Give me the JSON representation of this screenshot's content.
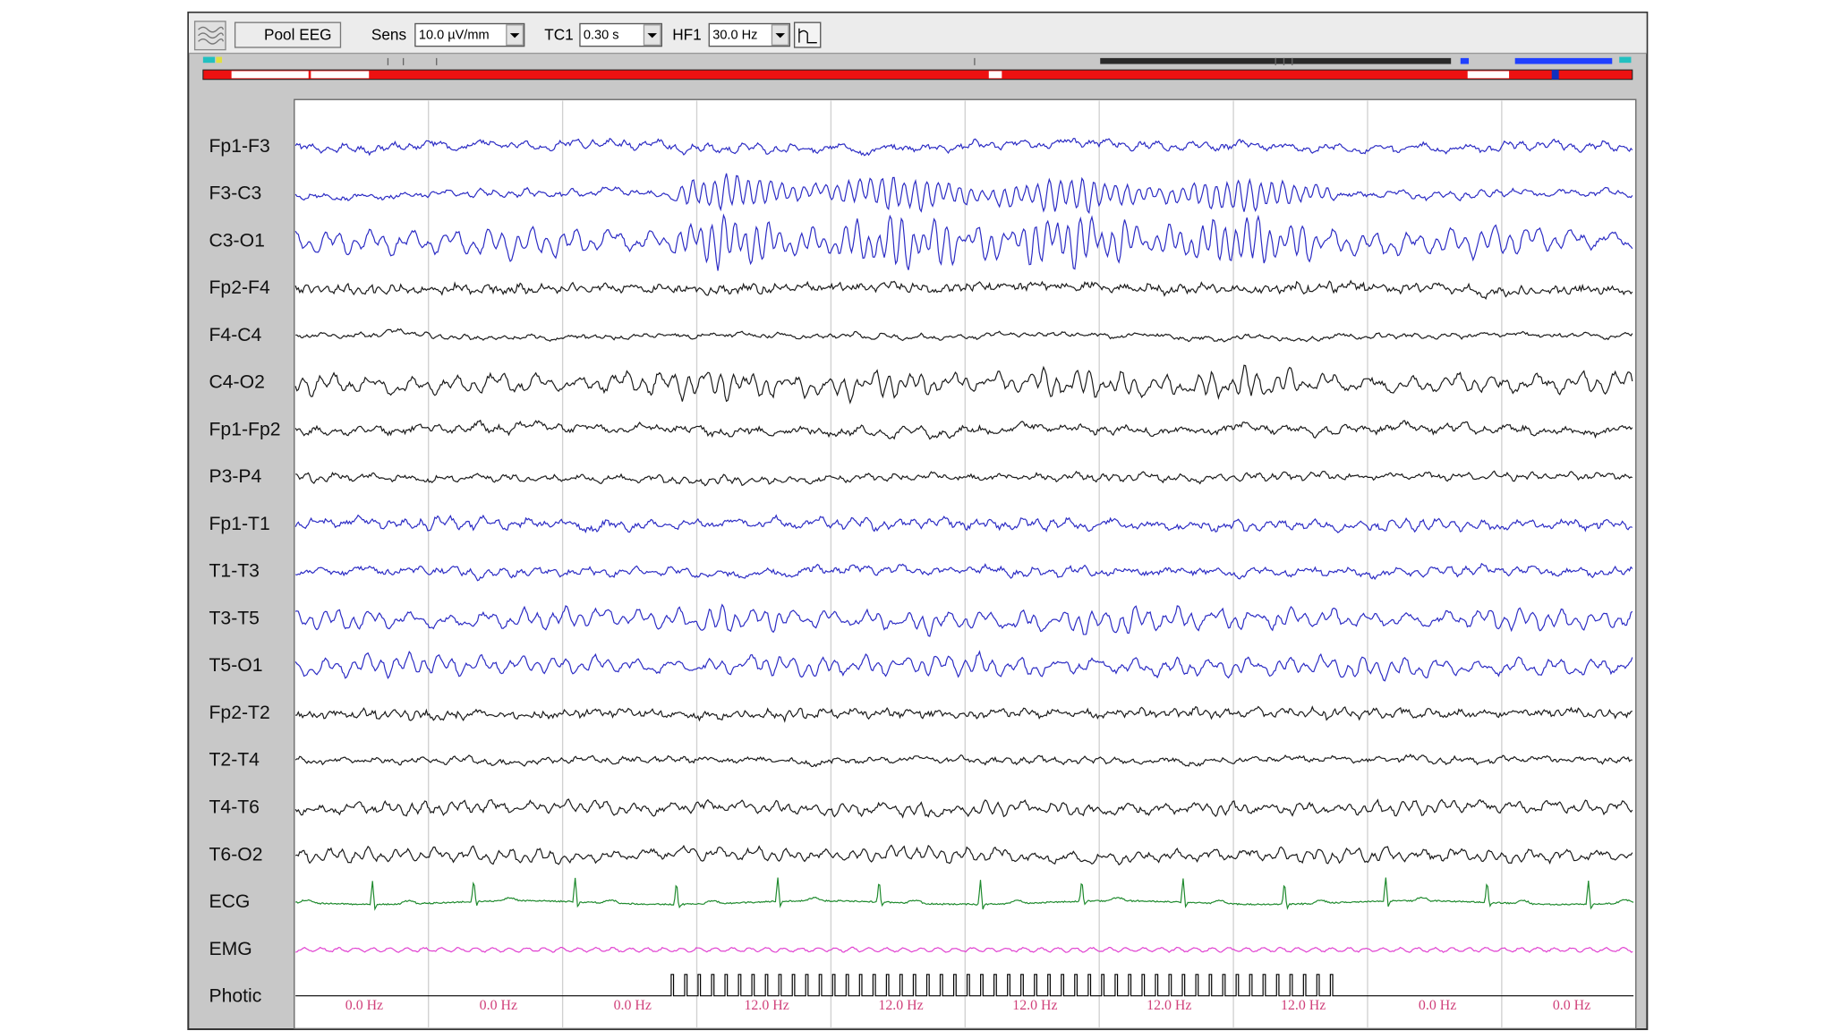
{
  "toolbar": {
    "montage": "Pool EEG",
    "sens_label": "Sens",
    "sens_value": "10.0 µV/mm",
    "tc_label": "TC1",
    "tc_value": "0.30 s",
    "hf_label": "HF1",
    "hf_value": "30.0 Hz"
  },
  "channels": [
    {
      "label": "Fp1-F3",
      "color": "#2b2bc4"
    },
    {
      "label": "F3-C3",
      "color": "#2b2bc4"
    },
    {
      "label": "C3-O1",
      "color": "#2b2bc4"
    },
    {
      "label": "Fp2-F4",
      "color": "#1a1a1a"
    },
    {
      "label": "F4-C4",
      "color": "#1a1a1a"
    },
    {
      "label": "C4-O2",
      "color": "#1a1a1a"
    },
    {
      "label": "Fp1-Fp2",
      "color": "#1a1a1a"
    },
    {
      "label": "P3-P4",
      "color": "#1a1a1a"
    },
    {
      "label": "Fp1-T1",
      "color": "#2b2bc4"
    },
    {
      "label": "T1-T3",
      "color": "#2b2bc4"
    },
    {
      "label": "T3-T5",
      "color": "#2b2bc4"
    },
    {
      "label": "T5-O1",
      "color": "#2b2bc4"
    },
    {
      "label": "Fp2-T2",
      "color": "#1a1a1a"
    },
    {
      "label": "T2-T4",
      "color": "#1a1a1a"
    },
    {
      "label": "T4-T6",
      "color": "#1a1a1a"
    },
    {
      "label": "T6-O2",
      "color": "#1a1a1a"
    },
    {
      "label": "ECG",
      "color": "#1f8a2e"
    },
    {
      "label": "EMG",
      "color": "#e040d0"
    },
    {
      "label": "Photic",
      "color": "#000000"
    }
  ],
  "photic_labels": [
    "0.0 Hz",
    "0.0 Hz",
    "0.0 Hz",
    "12.0 Hz",
    "12.0 Hz",
    "12.0 Hz",
    "12.0 Hz",
    "12.0 Hz",
    "0.0 Hz",
    "0.0 Hz"
  ]
}
